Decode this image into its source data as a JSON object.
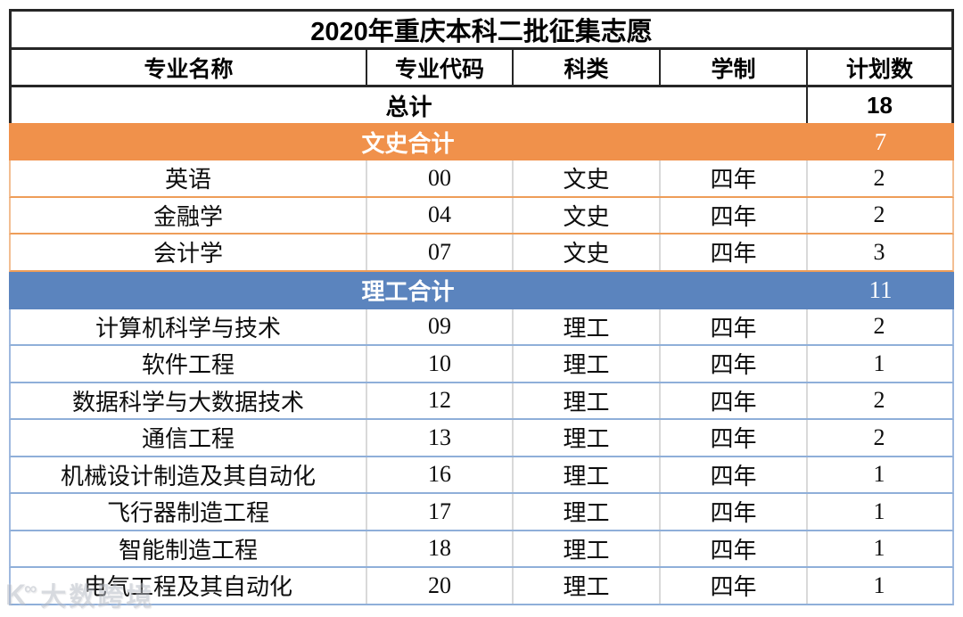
{
  "table": {
    "title": "2020年重庆本科二批征集志愿",
    "columns": [
      "专业名称",
      "专业代码",
      "科类",
      "学制",
      "计划数"
    ],
    "total_row": {
      "label": "总计",
      "value": "18"
    },
    "sections": [
      {
        "name": "wenshi",
        "summary_label": "文史合计",
        "summary_value": "7",
        "accent": "#F0914B",
        "line_strong": "#EE9D58",
        "line_soft": "#F3BE93",
        "rows": [
          {
            "major": "英语",
            "code": "00",
            "category": "文史",
            "duration": "四年",
            "plan": "2"
          },
          {
            "major": "金融学",
            "code": "04",
            "category": "文史",
            "duration": "四年",
            "plan": "2"
          },
          {
            "major": "会计学",
            "code": "07",
            "category": "文史",
            "duration": "四年",
            "plan": "3"
          }
        ]
      },
      {
        "name": "ligong",
        "summary_label": "理工合计",
        "summary_value": "11",
        "accent": "#5B84BE",
        "line_strong": "#8FAFD9",
        "line_soft": "#9FB9DF",
        "rows": [
          {
            "major": "计算机科学与技术",
            "code": "09",
            "category": "理工",
            "duration": "四年",
            "plan": "2"
          },
          {
            "major": "软件工程",
            "code": "10",
            "category": "理工",
            "duration": "四年",
            "plan": "1"
          },
          {
            "major": "数据科学与大数据技术",
            "code": "12",
            "category": "理工",
            "duration": "四年",
            "plan": "2"
          },
          {
            "major": "通信工程",
            "code": "13",
            "category": "理工",
            "duration": "四年",
            "plan": "2"
          },
          {
            "major": "机械设计制造及其自动化",
            "code": "16",
            "category": "理工",
            "duration": "四年",
            "plan": "1"
          },
          {
            "major": "飞行器制造工程",
            "code": "17",
            "category": "理工",
            "duration": "四年",
            "plan": "1"
          },
          {
            "major": "智能制造工程",
            "code": "18",
            "category": "理工",
            "duration": "四年",
            "plan": "1"
          },
          {
            "major": "电气工程及其自动化",
            "code": "20",
            "category": "理工",
            "duration": "四年",
            "plan": "1"
          }
        ]
      }
    ]
  },
  "watermark": {
    "logo": "K∞",
    "text": "大数跨境"
  }
}
